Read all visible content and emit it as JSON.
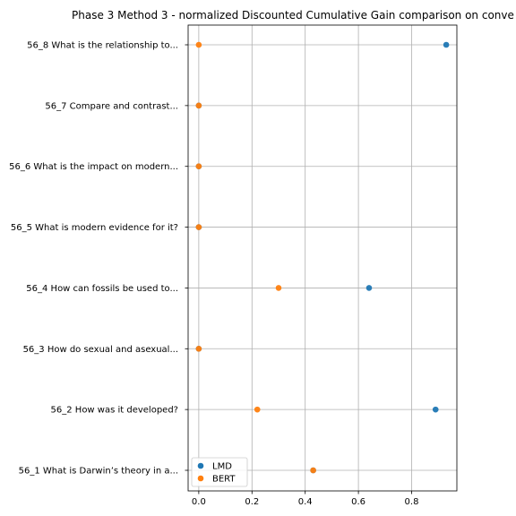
{
  "chart_data": {
    "type": "scatter",
    "title": "Phase 3 Method 3 - normalized Discounted Cumulative Gain comparison on conve",
    "xlabel": "",
    "ylabel": "",
    "xlim": [
      -0.04,
      0.97
    ],
    "xticks": [
      "0.0",
      "0.2",
      "0.4",
      "0.6",
      "0.8"
    ],
    "xtick_values": [
      0.0,
      0.2,
      0.4,
      0.6,
      0.8
    ],
    "grid": true,
    "legend_position": "lower-left",
    "categories": [
      "56_1 What is Darwin’s theory in a...",
      "56_2 How was it developed?",
      "56_3 How do sexual and asexual...",
      "56_4 How can fossils be used to...",
      "56_5 What is modern evidence for it?",
      "56_6 What is the impact on modern...",
      "56_7 Compare and contrast...",
      "56_8 What is the relationship to..."
    ],
    "series": [
      {
        "name": "LMD",
        "color": "#1f77b4",
        "values": [
          0.43,
          0.89,
          0.0,
          0.64,
          0.0,
          0.0,
          0.0,
          0.93
        ]
      },
      {
        "name": "BERT",
        "color": "#ff7f0e",
        "values": [
          0.43,
          0.22,
          0.0,
          0.3,
          0.0,
          0.0,
          0.0,
          0.0
        ]
      }
    ]
  }
}
